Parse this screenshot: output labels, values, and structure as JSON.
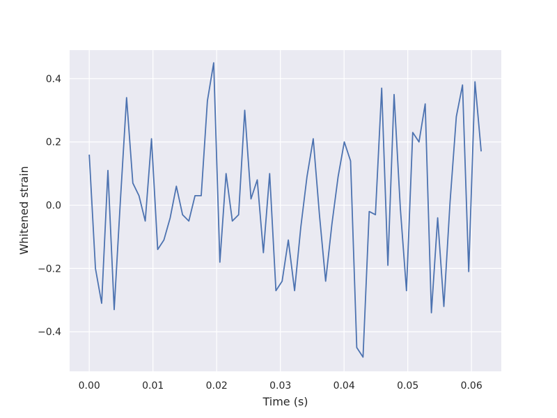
{
  "chart_data": {
    "type": "line",
    "title": "",
    "xlabel": "Time (s)",
    "ylabel": "Whitened strain",
    "xlim": [
      -0.00308,
      0.06468
    ],
    "ylim": [
      -0.525,
      0.49
    ],
    "xticks": [
      0.0,
      0.01,
      0.02,
      0.03,
      0.04,
      0.05,
      0.06
    ],
    "xtick_labels": [
      "0.00",
      "0.01",
      "0.02",
      "0.03",
      "0.04",
      "0.05",
      "0.06"
    ],
    "yticks": [
      -0.4,
      -0.2,
      0.0,
      0.2,
      0.4
    ],
    "ytick_labels": [
      "−0.4",
      "−0.2",
      "0.0",
      "0.2",
      "0.4"
    ],
    "grid": true,
    "colors": {
      "line": "#4c72b0",
      "background": "#eaeaf2",
      "grid": "#ffffff"
    },
    "series": [
      {
        "x": [
          0.0,
          0.00098,
          0.00195,
          0.00293,
          0.00391,
          0.00488,
          0.00586,
          0.00684,
          0.00781,
          0.00879,
          0.00977,
          0.01074,
          0.01172,
          0.0127,
          0.01367,
          0.01465,
          0.01563,
          0.0166,
          0.01758,
          0.01855,
          0.01953,
          0.02051,
          0.02148,
          0.02246,
          0.02344,
          0.02441,
          0.02539,
          0.02637,
          0.02734,
          0.02832,
          0.0293,
          0.03027,
          0.03125,
          0.03223,
          0.0332,
          0.03418,
          0.03516,
          0.03613,
          0.03711,
          0.03809,
          0.03906,
          0.04004,
          0.04102,
          0.04199,
          0.04297,
          0.04395,
          0.04492,
          0.0459,
          0.04688,
          0.04785,
          0.04883,
          0.0498,
          0.05078,
          0.05176,
          0.05273,
          0.05371,
          0.05469,
          0.05566,
          0.05664,
          0.05762,
          0.05859,
          0.05957,
          0.06055,
          0.06152
        ],
        "values": [
          0.16,
          -0.2,
          -0.31,
          0.11,
          -0.33,
          0.01,
          0.34,
          0.07,
          0.03,
          -0.05,
          0.21,
          -0.14,
          -0.11,
          -0.04,
          0.06,
          -0.03,
          -0.05,
          0.03,
          0.03,
          0.33,
          0.45,
          -0.18,
          0.1,
          -0.05,
          -0.03,
          0.3,
          0.02,
          0.08,
          -0.15,
          0.1,
          -0.27,
          -0.24,
          -0.11,
          -0.27,
          -0.07,
          0.09,
          0.21,
          -0.03,
          -0.24,
          -0.06,
          0.09,
          0.2,
          0.14,
          -0.45,
          -0.48,
          -0.02,
          -0.03,
          0.37,
          -0.19,
          0.35,
          -0.01,
          -0.27,
          0.23,
          0.2,
          0.32,
          -0.34,
          -0.04,
          -0.32,
          0.01,
          0.28,
          0.38,
          -0.21,
          0.39,
          0.17
        ]
      }
    ]
  }
}
